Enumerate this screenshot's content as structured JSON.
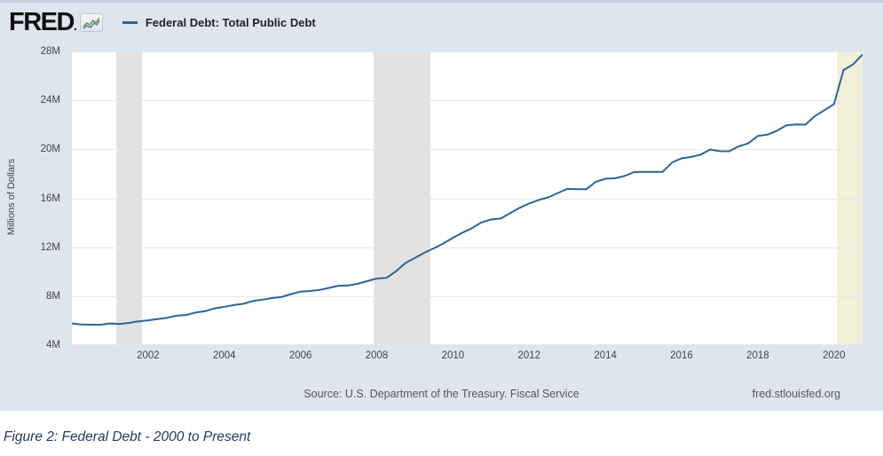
{
  "header": {
    "logo_text": "FRED",
    "logo_suffix": ".",
    "legend_label": "Federal Debt: Total Public Debt"
  },
  "source_row": {
    "source": "Source: U.S. Department of the Treasury. Fiscal Service",
    "site": "fred.stlouisfed.org"
  },
  "caption": "Figure 2: Federal Debt - 2000 to Present",
  "colors": {
    "chart_background": "#dfe5ef",
    "plot_background": "#ffffff",
    "line": "#2c6496",
    "gridline": "#e7e7e7",
    "recession_gray": "#e2e2e2",
    "recession_cream": "#f3f0da",
    "tick_text": "#444444",
    "source_text": "#555555",
    "caption_text": "#1f3a5f"
  },
  "chart_data": {
    "type": "line",
    "title": "Federal Debt: Total Public Debt",
    "xlabel": "",
    "ylabel": "Millions of Dollars",
    "x_range": [
      2000,
      2020.75
    ],
    "y_range": [
      4,
      28
    ],
    "grid": true,
    "legend_position": "top-left-header",
    "y_ticks": [
      {
        "value": 4,
        "label": "4M"
      },
      {
        "value": 8,
        "label": "8M"
      },
      {
        "value": 12,
        "label": "12M"
      },
      {
        "value": 16,
        "label": "16M"
      },
      {
        "value": 20,
        "label": "20M"
      },
      {
        "value": 24,
        "label": "24M"
      },
      {
        "value": 28,
        "label": "28M"
      }
    ],
    "x_ticks": [
      {
        "value": 2002,
        "label": "2002"
      },
      {
        "value": 2004,
        "label": "2004"
      },
      {
        "value": 2006,
        "label": "2006"
      },
      {
        "value": 2008,
        "label": "2008"
      },
      {
        "value": 2010,
        "label": "2010"
      },
      {
        "value": 2012,
        "label": "2012"
      },
      {
        "value": 2014,
        "label": "2014"
      },
      {
        "value": 2016,
        "label": "2016"
      },
      {
        "value": 2018,
        "label": "2018"
      },
      {
        "value": 2020,
        "label": "2020"
      }
    ],
    "recession_bands": [
      {
        "start": 2001.17,
        "end": 2001.83,
        "color": "#e2e2e2"
      },
      {
        "start": 2007.92,
        "end": 2009.42,
        "color": "#e2e2e2"
      },
      {
        "start": 2020.08,
        "end": 2020.75,
        "color": "#f3f0da"
      }
    ],
    "series": [
      {
        "name": "Federal Debt: Total Public Debt",
        "color": "#2c6496",
        "units": "axis M ticks; quarterly values read off chart",
        "points": [
          [
            2000.0,
            5.77
          ],
          [
            2000.25,
            5.69
          ],
          [
            2000.5,
            5.67
          ],
          [
            2000.75,
            5.66
          ],
          [
            2001.0,
            5.77
          ],
          [
            2001.25,
            5.73
          ],
          [
            2001.5,
            5.81
          ],
          [
            2001.75,
            5.94
          ],
          [
            2002.0,
            6.02
          ],
          [
            2002.25,
            6.13
          ],
          [
            2002.5,
            6.23
          ],
          [
            2002.75,
            6.41
          ],
          [
            2003.0,
            6.46
          ],
          [
            2003.25,
            6.67
          ],
          [
            2003.5,
            6.78
          ],
          [
            2003.75,
            7.0
          ],
          [
            2004.0,
            7.13
          ],
          [
            2004.25,
            7.27
          ],
          [
            2004.5,
            7.38
          ],
          [
            2004.75,
            7.6
          ],
          [
            2005.0,
            7.71
          ],
          [
            2005.25,
            7.84
          ],
          [
            2005.5,
            7.93
          ],
          [
            2005.75,
            8.17
          ],
          [
            2006.0,
            8.37
          ],
          [
            2006.25,
            8.42
          ],
          [
            2006.5,
            8.51
          ],
          [
            2006.75,
            8.68
          ],
          [
            2007.0,
            8.85
          ],
          [
            2007.25,
            8.87
          ],
          [
            2007.5,
            9.01
          ],
          [
            2007.75,
            9.23
          ],
          [
            2008.0,
            9.44
          ],
          [
            2008.25,
            9.49
          ],
          [
            2008.5,
            10.02
          ],
          [
            2008.75,
            10.7
          ],
          [
            2009.0,
            11.13
          ],
          [
            2009.25,
            11.55
          ],
          [
            2009.5,
            11.91
          ],
          [
            2009.75,
            12.31
          ],
          [
            2010.0,
            12.77
          ],
          [
            2010.25,
            13.19
          ],
          [
            2010.5,
            13.56
          ],
          [
            2010.75,
            14.03
          ],
          [
            2011.0,
            14.27
          ],
          [
            2011.25,
            14.34
          ],
          [
            2011.5,
            14.79
          ],
          [
            2011.75,
            15.22
          ],
          [
            2012.0,
            15.58
          ],
          [
            2012.25,
            15.86
          ],
          [
            2012.5,
            16.07
          ],
          [
            2012.75,
            16.43
          ],
          [
            2013.0,
            16.77
          ],
          [
            2013.25,
            16.74
          ],
          [
            2013.5,
            16.74
          ],
          [
            2013.75,
            17.35
          ],
          [
            2014.0,
            17.6
          ],
          [
            2014.25,
            17.63
          ],
          [
            2014.5,
            17.82
          ],
          [
            2014.75,
            18.14
          ],
          [
            2015.0,
            18.15
          ],
          [
            2015.25,
            18.15
          ],
          [
            2015.5,
            18.15
          ],
          [
            2015.75,
            18.92
          ],
          [
            2016.0,
            19.26
          ],
          [
            2016.25,
            19.38
          ],
          [
            2016.5,
            19.57
          ],
          [
            2016.75,
            19.98
          ],
          [
            2017.0,
            19.85
          ],
          [
            2017.25,
            19.84
          ],
          [
            2017.5,
            20.24
          ],
          [
            2017.75,
            20.49
          ],
          [
            2018.0,
            21.09
          ],
          [
            2018.25,
            21.2
          ],
          [
            2018.5,
            21.52
          ],
          [
            2018.75,
            21.97
          ],
          [
            2019.0,
            22.03
          ],
          [
            2019.25,
            22.02
          ],
          [
            2019.5,
            22.72
          ],
          [
            2019.75,
            23.2
          ],
          [
            2020.0,
            23.69
          ],
          [
            2020.25,
            26.48
          ],
          [
            2020.5,
            26.95
          ],
          [
            2020.75,
            27.75
          ]
        ]
      }
    ]
  }
}
